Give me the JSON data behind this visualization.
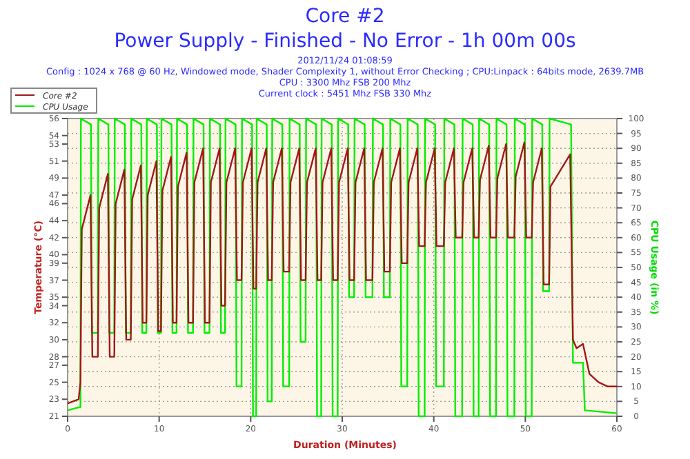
{
  "chart_data": {
    "type": "line",
    "title": "Core #2",
    "subtitle": "Power Supply - Finished - No Error - 1h 00m 00s",
    "annotations": [
      "2012/11/24 01:08:59",
      "Config : 1024 x 768 @ 60 Hz, Windowed mode, Shader Complexity 1, without Error Checking ; CPU:Linpack : 64bits mode, 2639.7MB",
      "CPU : 3300 Mhz FSB 200 Mhz",
      "Current clock : 5451 Mhz FSB 330 Mhz"
    ],
    "xlabel": "Duration (Minutes)",
    "ylabel": "Temperature (°C)",
    "y2label": "CPU Usage (in %)",
    "xlim": [
      0,
      60
    ],
    "xticks": [
      0,
      10,
      20,
      30,
      40,
      50,
      60
    ],
    "ylim": [
      21,
      56
    ],
    "yticks": [
      21,
      23,
      25,
      27,
      28,
      30,
      32,
      34,
      35,
      37,
      39,
      40,
      42,
      44,
      46,
      47,
      49,
      51,
      53,
      54,
      56
    ],
    "y2lim": [
      0,
      100
    ],
    "y2ticks": [
      0,
      5,
      10,
      15,
      20,
      25,
      30,
      35,
      40,
      45,
      50,
      55,
      60,
      65,
      70,
      75,
      80,
      85,
      90,
      95,
      100
    ],
    "grid": true,
    "legend": "top left",
    "line_style": "solid",
    "series": [
      {
        "name": "Core #2",
        "color": "#a01818",
        "x": [
          0,
          1.2,
          1.4,
          1.55,
          2.5,
          2.7,
          3.3,
          3.45,
          4.4,
          4.6,
          5.1,
          5.25,
          6.2,
          6.4,
          6.9,
          7.05,
          8.0,
          8.2,
          8.6,
          8.75,
          9.7,
          9.9,
          10.2,
          10.35,
          11.3,
          11.5,
          11.9,
          12.05,
          13.0,
          13.2,
          13.7,
          13.85,
          14.8,
          15.0,
          15.5,
          15.65,
          16.6,
          16.8,
          17.2,
          17.35,
          18.3,
          18.5,
          19.0,
          19.15,
          20.1,
          20.3,
          20.6,
          20.75,
          21.7,
          21.9,
          22.3,
          22.45,
          23.4,
          23.6,
          24.2,
          24.35,
          25.3,
          25.5,
          26.0,
          26.15,
          27.1,
          27.3,
          27.7,
          27.85,
          28.8,
          29.0,
          29.5,
          29.65,
          30.6,
          30.8,
          31.3,
          31.45,
          32.4,
          32.6,
          33.3,
          33.45,
          34.4,
          34.6,
          35.2,
          35.35,
          36.3,
          36.5,
          37.1,
          37.25,
          38.2,
          38.4,
          39.0,
          39.15,
          40.1,
          40.3,
          41.1,
          41.25,
          42.2,
          42.4,
          43.1,
          43.25,
          44.2,
          44.4,
          44.9,
          45.05,
          46.0,
          46.2,
          46.8,
          46.95,
          47.9,
          48.1,
          48.8,
          48.95,
          49.9,
          50.1,
          50.7,
          50.85,
          51.8,
          52.0,
          52.6,
          52.75,
          54.9,
          55.2,
          55.6,
          56.3,
          57,
          58,
          59,
          60
        ],
        "values": [
          22.5,
          23,
          25,
          43,
          47,
          28,
          28,
          45.5,
          49.5,
          28,
          28,
          46,
          50,
          30,
          30,
          46.5,
          50.5,
          32,
          32,
          47,
          51,
          31,
          31,
          47.5,
          51.5,
          32,
          32,
          48,
          52,
          32,
          32,
          48.5,
          52.5,
          32,
          32,
          48.5,
          52.5,
          34,
          34,
          48.5,
          52.5,
          37,
          37,
          48.5,
          52.5,
          36,
          36,
          48.5,
          52.5,
          37,
          37,
          48.5,
          52.5,
          38,
          38,
          48.5,
          52.5,
          37,
          37,
          48.5,
          52.5,
          37,
          37,
          48.5,
          52.5,
          37,
          37,
          48.5,
          52.5,
          37,
          37,
          48.5,
          52.5,
          37,
          37,
          48.5,
          52.5,
          38,
          38,
          48.5,
          52.5,
          39,
          39,
          48.5,
          52.5,
          41,
          41,
          48.5,
          52.5,
          41,
          41,
          48.5,
          52.5,
          42,
          42,
          48.5,
          52.5,
          42,
          42,
          48.8,
          52.8,
          42,
          42,
          49,
          53,
          42,
          42,
          49.2,
          53.2,
          42,
          42,
          48.5,
          52.5,
          36.5,
          36.5,
          48,
          51.8,
          30,
          29,
          29.5,
          26,
          25,
          24.5,
          24.5
        ]
      },
      {
        "name": "CPU Usage",
        "color": "#00ee00",
        "axis": "y2",
        "x": [
          0,
          1.2,
          1.4,
          1.45,
          2.55,
          2.65,
          3.3,
          3.35,
          4.45,
          4.55,
          5.1,
          5.15,
          6.25,
          6.35,
          6.9,
          6.95,
          8.05,
          8.15,
          8.6,
          8.65,
          9.75,
          9.85,
          10.2,
          10.25,
          11.35,
          11.45,
          11.9,
          11.95,
          13.05,
          13.15,
          13.7,
          13.75,
          14.85,
          14.95,
          15.5,
          15.55,
          16.65,
          16.75,
          17.2,
          17.25,
          18.35,
          18.45,
          19.0,
          19.05,
          20.15,
          20.25,
          20.6,
          20.65,
          21.75,
          21.85,
          22.3,
          22.35,
          23.45,
          23.55,
          24.2,
          24.25,
          25.35,
          25.45,
          26.0,
          26.05,
          27.15,
          27.25,
          27.7,
          27.75,
          28.85,
          28.95,
          29.5,
          29.55,
          30.65,
          30.75,
          31.3,
          31.35,
          32.45,
          32.55,
          33.3,
          33.35,
          34.45,
          34.55,
          35.2,
          35.25,
          36.35,
          36.45,
          37.1,
          37.15,
          38.25,
          38.35,
          39.0,
          39.05,
          40.15,
          40.25,
          41.1,
          41.15,
          42.25,
          42.35,
          43.1,
          43.15,
          44.25,
          44.35,
          44.9,
          44.95,
          46.05,
          46.15,
          46.8,
          46.85,
          47.95,
          48.05,
          48.8,
          48.85,
          49.95,
          50.05,
          50.7,
          50.75,
          51.85,
          51.95,
          52.6,
          52.65,
          55.0,
          55.2,
          56.3,
          56.5,
          60
        ],
        "values": [
          2,
          3,
          3,
          100,
          98,
          28,
          28,
          100,
          98,
          28,
          28,
          100,
          98,
          28,
          28,
          100,
          98,
          28,
          28,
          100,
          98,
          28,
          28,
          100,
          98,
          28,
          28,
          100,
          98,
          28,
          28,
          100,
          98,
          28,
          28,
          100,
          98,
          28,
          28,
          100,
          98,
          10,
          10,
          100,
          98,
          0,
          0,
          100,
          98,
          5,
          5,
          100,
          98,
          10,
          10,
          100,
          98,
          25,
          25,
          100,
          98,
          0,
          0,
          100,
          98,
          0,
          0,
          100,
          98,
          40,
          40,
          100,
          98,
          40,
          40,
          100,
          98,
          40,
          40,
          100,
          98,
          10,
          10,
          100,
          98,
          0,
          0,
          100,
          98,
          10,
          10,
          100,
          98,
          0,
          0,
          100,
          98,
          0,
          0,
          100,
          98,
          0,
          0,
          100,
          98,
          0,
          0,
          100,
          98,
          0,
          0,
          100,
          98,
          42,
          42,
          100,
          98,
          18,
          18,
          2,
          1
        ]
      }
    ]
  }
}
